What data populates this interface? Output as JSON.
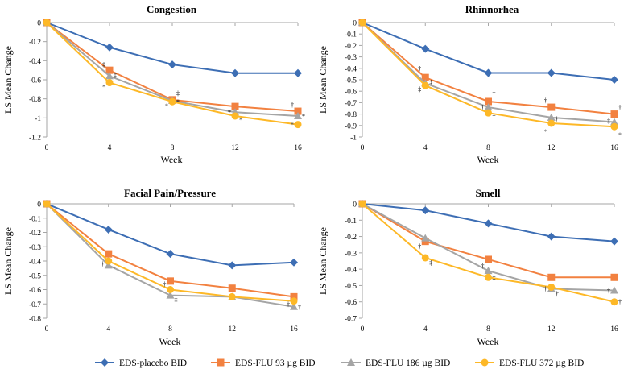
{
  "chart_data": [
    {
      "type": "line",
      "title": "Congestion",
      "xlabel": "Week",
      "ylabel": "LS Mean Change",
      "x": [
        0,
        4,
        8,
        12,
        16
      ],
      "xlim": [
        0,
        16
      ],
      "ylim": [
        -1.2,
        0
      ],
      "yticks": [
        0,
        -0.2,
        -0.4,
        -0.6,
        -0.8,
        -1,
        -1.2
      ],
      "series": [
        {
          "name": "EDS-placebo BID",
          "values": [
            0,
            -0.26,
            -0.44,
            -0.53,
            -0.53
          ]
        },
        {
          "name": "EDS-FLU 93 µg BID",
          "values": [
            0,
            -0.5,
            -0.81,
            -0.88,
            -0.93
          ]
        },
        {
          "name": "EDS-FLU 186 µg BID",
          "values": [
            0,
            -0.56,
            -0.82,
            -0.94,
            -0.98
          ]
        },
        {
          "name": "EDS-FLU 372 µg BID",
          "values": [
            0,
            -0.63,
            -0.83,
            -0.98,
            -1.07
          ]
        }
      ],
      "annotations": [
        {
          "text": "‡",
          "x": 4,
          "y": -0.44,
          "color": "#000000"
        },
        {
          "text": "‡",
          "x": 4,
          "y": -0.55,
          "color": "#000000"
        },
        {
          "text": "*",
          "x": 4,
          "y": -0.67,
          "color": "#555555"
        },
        {
          "text": "‡",
          "x": 8,
          "y": -0.74,
          "color": "#000000"
        },
        {
          "text": "*",
          "x": 8,
          "y": -0.87,
          "color": "#555555"
        },
        {
          "text": "*",
          "x": 8,
          "y": -0.83,
          "color": "#000000"
        },
        {
          "text": "*",
          "x": 12,
          "y": -0.94,
          "color": "#000000"
        },
        {
          "text": "*",
          "x": 12,
          "y": -1.02,
          "color": "#555555"
        },
        {
          "text": "†",
          "x": 16,
          "y": -0.86,
          "color": "#000000"
        },
        {
          "text": "*",
          "x": 16,
          "y": -0.98,
          "color": "#000000"
        },
        {
          "text": "*",
          "x": 16,
          "y": -1.07,
          "color": "#555555"
        }
      ]
    },
    {
      "type": "line",
      "title": "Rhinnorhea",
      "xlabel": "Week",
      "ylabel": "LS Mean Change",
      "x": [
        0,
        4,
        8,
        12,
        16
      ],
      "xlim": [
        0,
        16
      ],
      "ylim": [
        -1,
        0
      ],
      "yticks": [
        0,
        -0.1,
        -0.2,
        -0.3,
        -0.4,
        -0.5,
        -0.6,
        -0.7,
        -0.8,
        -0.9,
        -1
      ],
      "series": [
        {
          "name": "EDS-placebo BID",
          "values": [
            0,
            -0.23,
            -0.44,
            -0.44,
            -0.5
          ]
        },
        {
          "name": "EDS-FLU 93 µg BID",
          "values": [
            0,
            -0.48,
            -0.69,
            -0.74,
            -0.8
          ]
        },
        {
          "name": "EDS-FLU 186 µg BID",
          "values": [
            0,
            -0.53,
            -0.74,
            -0.83,
            -0.87
          ]
        },
        {
          "name": "EDS-FLU 372 µg BID",
          "values": [
            0,
            -0.55,
            -0.79,
            -0.88,
            -0.91
          ]
        }
      ],
      "annotations": [
        {
          "text": "†",
          "x": 4,
          "y": -0.4,
          "color": "#000000"
        },
        {
          "text": "‡",
          "x": 4,
          "y": -0.52,
          "color": "#000000"
        },
        {
          "text": "‡",
          "x": 4,
          "y": -0.58,
          "color": "#000000"
        },
        {
          "text": "†",
          "x": 8,
          "y": -0.62,
          "color": "#000000"
        },
        {
          "text": "†",
          "x": 8,
          "y": -0.74,
          "color": "#000000"
        },
        {
          "text": "‡",
          "x": 8,
          "y": -0.82,
          "color": "#000000"
        },
        {
          "text": "†",
          "x": 12,
          "y": -0.68,
          "color": "#000000"
        },
        {
          "text": "†",
          "x": 12,
          "y": -0.84,
          "color": "#000000"
        },
        {
          "text": "*",
          "x": 12,
          "y": -0.95,
          "color": "#555555"
        },
        {
          "text": "†",
          "x": 16,
          "y": -0.74,
          "color": "#000000"
        },
        {
          "text": "‡",
          "x": 16,
          "y": -0.86,
          "color": "#000000"
        },
        {
          "text": "*",
          "x": 16,
          "y": -0.98,
          "color": "#555555"
        }
      ]
    },
    {
      "type": "line",
      "title": "Facial Pain/Pressure",
      "xlabel": "Week",
      "ylabel": "LS Mean Change",
      "x": [
        0,
        4,
        8,
        12,
        16
      ],
      "xlim": [
        0,
        16
      ],
      "ylim": [
        -0.8,
        0
      ],
      "yticks": [
        0,
        -0.1,
        -0.2,
        -0.3,
        -0.4,
        -0.5,
        -0.6,
        -0.7,
        -0.8
      ],
      "series": [
        {
          "name": "EDS-placebo BID",
          "values": [
            0,
            -0.18,
            -0.35,
            -0.43,
            -0.41
          ]
        },
        {
          "name": "EDS-FLU 93 µg BID",
          "values": [
            0,
            -0.35,
            -0.54,
            -0.59,
            -0.65
          ]
        },
        {
          "name": "EDS-FLU 186 µg BID",
          "values": [
            0,
            -0.43,
            -0.64,
            -0.65,
            -0.72
          ]
        },
        {
          "name": "EDS-FLU 372 µg BID",
          "values": [
            0,
            -0.4,
            -0.6,
            -0.65,
            -0.68
          ]
        }
      ],
      "annotations": [
        {
          "text": "†",
          "x": 4,
          "y": -0.42,
          "color": "#000000"
        },
        {
          "text": "†",
          "x": 4,
          "y": -0.45,
          "color": "#000000"
        },
        {
          "text": "†",
          "x": 8,
          "y": -0.56,
          "color": "#000000"
        },
        {
          "text": "‡",
          "x": 8,
          "y": -0.67,
          "color": "#000000"
        },
        {
          "text": "†",
          "x": 16,
          "y": -0.7,
          "color": "#000000"
        },
        {
          "text": "†",
          "x": 16,
          "y": -0.72,
          "color": "#000000"
        }
      ]
    },
    {
      "type": "line",
      "title": "Smell",
      "xlabel": "Week",
      "ylabel": "LS Mean Change",
      "x": [
        0,
        4,
        8,
        12,
        16
      ],
      "xlim": [
        0,
        16
      ],
      "ylim": [
        -0.7,
        0
      ],
      "yticks": [
        0,
        -0.1,
        -0.2,
        -0.3,
        -0.4,
        -0.5,
        -0.6,
        -0.7
      ],
      "series": [
        {
          "name": "EDS-placebo BID",
          "values": [
            0,
            -0.04,
            -0.12,
            -0.2,
            -0.23
          ]
        },
        {
          "name": "EDS-FLU 93 µg BID",
          "values": [
            0,
            -0.23,
            -0.34,
            -0.45,
            -0.45
          ]
        },
        {
          "name": "EDS-FLU 186 µg BID",
          "values": [
            0,
            -0.21,
            -0.41,
            -0.52,
            -0.53
          ]
        },
        {
          "name": "EDS-FLU 372 µg BID",
          "values": [
            0,
            -0.33,
            -0.45,
            -0.51,
            -0.6
          ]
        }
      ],
      "annotations": [
        {
          "text": "†",
          "x": 4,
          "y": -0.26,
          "color": "#000000"
        },
        {
          "text": "‡",
          "x": 4,
          "y": -0.36,
          "color": "#000000"
        },
        {
          "text": "†",
          "x": 8,
          "y": -0.38,
          "color": "#000000"
        },
        {
          "text": "‡",
          "x": 8,
          "y": -0.45,
          "color": "#000000"
        },
        {
          "text": "†",
          "x": 12,
          "y": -0.52,
          "color": "#000000"
        },
        {
          "text": "†",
          "x": 12,
          "y": -0.55,
          "color": "#000000"
        },
        {
          "text": "†",
          "x": 16,
          "y": -0.53,
          "color": "#000000"
        },
        {
          "text": "†",
          "x": 16,
          "y": -0.6,
          "color": "#000000"
        }
      ]
    }
  ],
  "legend": {
    "placement": "bottom",
    "items": [
      {
        "label": "EDS-placebo BID",
        "color": "#3d6eb4",
        "marker": "diamond"
      },
      {
        "label": "EDS-FLU 93 µg BID",
        "color": "#f28140",
        "marker": "square"
      },
      {
        "label": "EDS-FLU 186 µg BID",
        "color": "#a5a5a5",
        "marker": "triangle"
      },
      {
        "label": "EDS-FLU 372 µg BID",
        "color": "#fdb827",
        "marker": "circle"
      }
    ]
  },
  "colors": {
    "placebo": "#3d6eb4",
    "flu93": "#f28140",
    "flu186": "#a5a5a5",
    "flu372": "#fdb827",
    "axis": "#a6a6a6"
  }
}
